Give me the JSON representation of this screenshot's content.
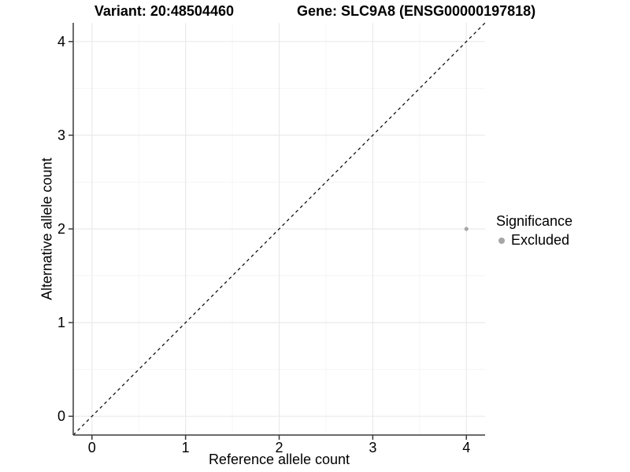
{
  "title": {
    "variant": "Variant: 20:48504460",
    "gene": "Gene: SLC9A8 (ENSG00000197818)"
  },
  "chart_data": {
    "type": "scatter",
    "title": "Variant: 20:48504460  Gene: SLC9A8 (ENSG00000197818)",
    "xlabel": "Reference allele count",
    "ylabel": "Alternative allele count",
    "xlim": [
      -0.2,
      4.2
    ],
    "ylim": [
      -0.2,
      4.2
    ],
    "x_ticks": [
      0,
      1,
      2,
      3,
      4
    ],
    "y_ticks": [
      0,
      1,
      2,
      3,
      4
    ],
    "minor_x_ticks": [
      0.5,
      1.5,
      2.5,
      3.5
    ],
    "minor_y_ticks": [
      0.5,
      1.5,
      2.5,
      3.5
    ],
    "grid": true,
    "series": [
      {
        "name": "Excluded",
        "color": "#a6a6a6",
        "points": [
          {
            "x": 4,
            "y": 2
          }
        ]
      }
    ],
    "reference_line": {
      "type": "identity",
      "style": "dashed",
      "color": "#111111",
      "from": [
        -0.2,
        -0.2
      ],
      "to": [
        4.2,
        4.2
      ]
    },
    "legend": {
      "title": "Significance",
      "position": "right",
      "items": [
        {
          "label": "Excluded",
          "color": "#a6a6a6"
        }
      ]
    },
    "colors": {
      "major_grid": "#eaeaea",
      "minor_grid": "#f5f5f5",
      "axis_line": "#3a3a3a",
      "tick_text": "#000000"
    }
  }
}
